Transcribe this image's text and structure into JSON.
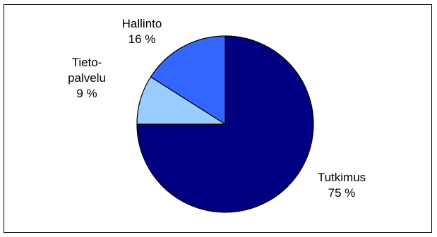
{
  "chart_data": {
    "type": "pie",
    "title": "",
    "slices": [
      {
        "label_lines": [
          "Tutkimus"
        ],
        "percent_label": "75 %",
        "value": 75,
        "color": "#000080"
      },
      {
        "label_lines": [
          "Tieto-",
          "palvelu"
        ],
        "percent_label": "9 %",
        "value": 9,
        "color": "#99ccff"
      },
      {
        "label_lines": [
          "Hallinto"
        ],
        "percent_label": "16 %",
        "value": 16,
        "color": "#3366ff"
      }
    ],
    "start_angle_deg": 0,
    "direction": "clockwise-from-12-oclock",
    "legend": "none"
  }
}
